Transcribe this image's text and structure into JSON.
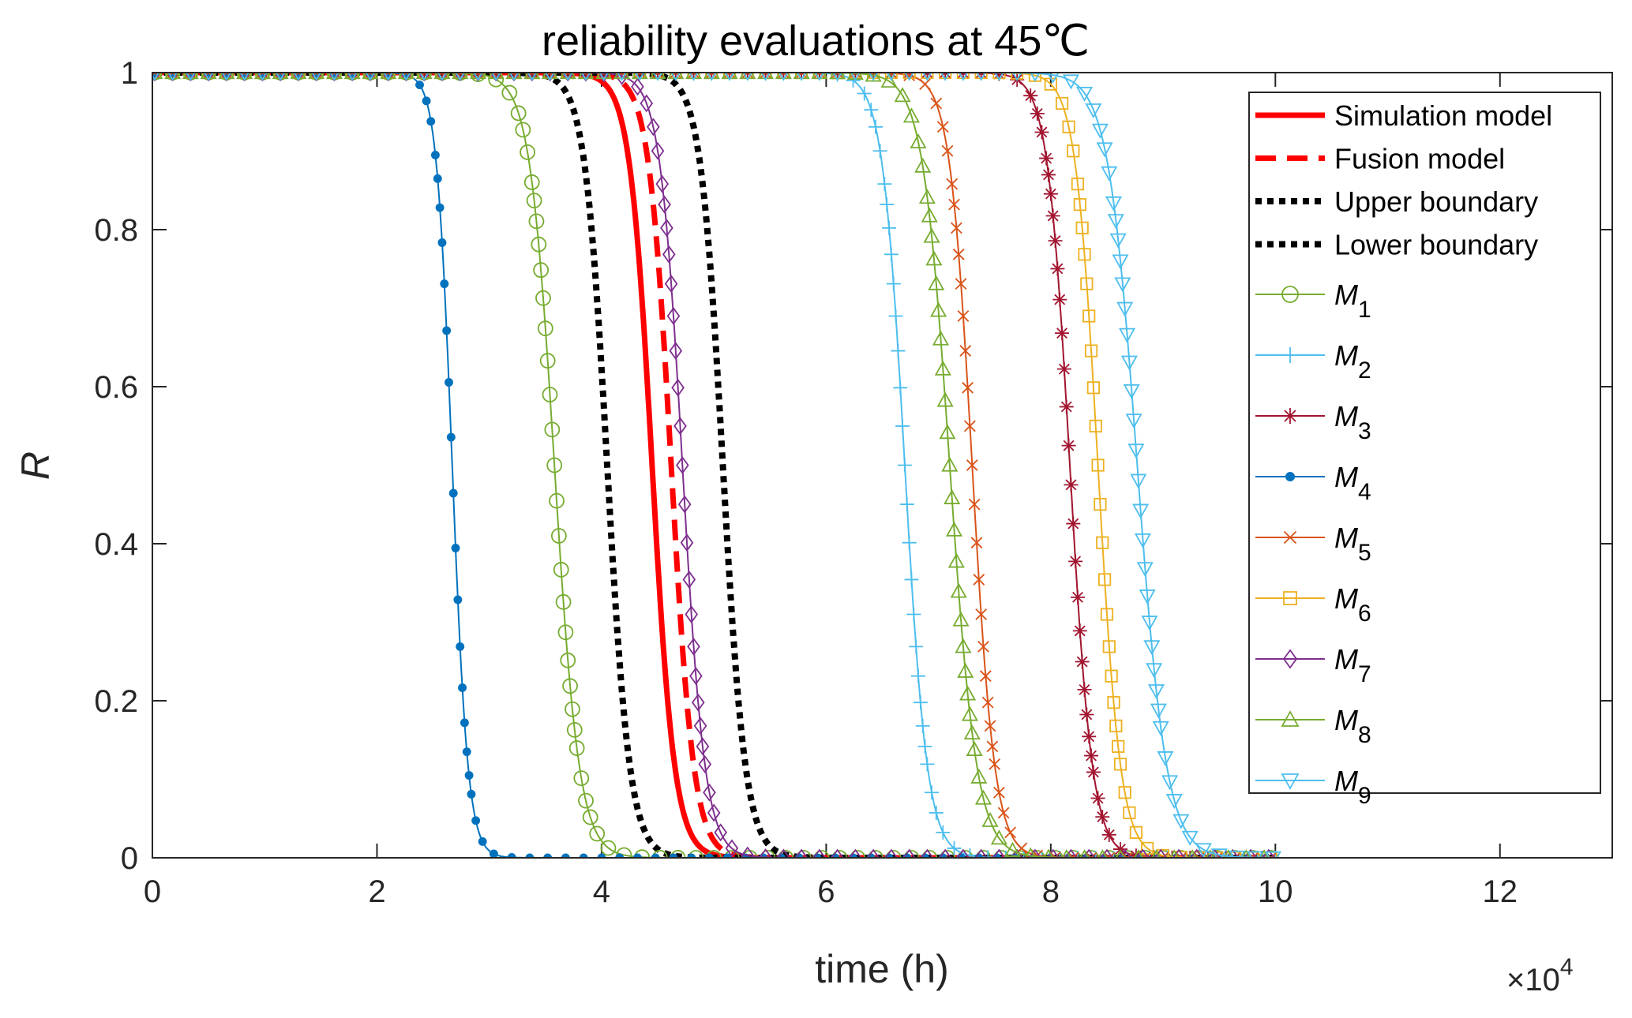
{
  "chart_data": {
    "type": "line",
    "title": "reliability evaluations at 45℃",
    "xlabel": "time (h)",
    "ylabel": "R",
    "x_multiplier_label": "×10",
    "x_multiplier_exp": "4",
    "xlim": [
      0,
      13
    ],
    "ylim": [
      0,
      1
    ],
    "xticks": [
      0,
      2,
      4,
      6,
      8,
      10,
      12
    ],
    "xtick_labels": [
      "0",
      "2",
      "4",
      "6",
      "8",
      "10",
      "12"
    ],
    "yticks": [
      0,
      0.2,
      0.4,
      0.6,
      0.8,
      1
    ],
    "ytick_labels": [
      "0",
      "0.2",
      "0.4",
      "0.6",
      "0.8",
      "1"
    ],
    "x_end": 10,
    "legend_position": "top-right",
    "series": [
      {
        "name": "Simulation model",
        "label": "Simulation model",
        "t50": 4.45,
        "scale": 0.1,
        "color": "#ff0000",
        "style": "solid",
        "marker": "none"
      },
      {
        "name": "Fusion model",
        "label": "Fusion model",
        "t50": 4.62,
        "scale": 0.1,
        "color": "#ff0000",
        "style": "dashed",
        "marker": "none"
      },
      {
        "name": "Upper boundary",
        "label": "Upper boundary",
        "t50": 5.08,
        "scale": 0.1,
        "color": "#000000",
        "style": "dotted",
        "marker": "none"
      },
      {
        "name": "Lower boundary",
        "label": "Lower boundary",
        "t50": 4.05,
        "scale": 0.1,
        "color": "#000000",
        "style": "dotted",
        "marker": "none"
      },
      {
        "name": "M1",
        "label": "M",
        "sub": "1",
        "t50": 3.58,
        "scale": 0.11,
        "color": "#77ac30",
        "style": "solid",
        "marker": "circle"
      },
      {
        "name": "M2",
        "label": "M",
        "sub": "2",
        "t50": 6.7,
        "scale": 0.1,
        "color": "#4dbeee",
        "style": "solid",
        "marker": "plus"
      },
      {
        "name": "M3",
        "label": "M",
        "sub": "3",
        "t50": 8.17,
        "scale": 0.1,
        "color": "#a2142f",
        "style": "solid",
        "marker": "star"
      },
      {
        "name": "M4",
        "label": "M",
        "sub": "4",
        "t50": 2.67,
        "scale": 0.07,
        "color": "#0072bd",
        "style": "solid",
        "marker": "dot"
      },
      {
        "name": "M5",
        "label": "M",
        "sub": "5",
        "t50": 7.3,
        "scale": 0.1,
        "color": "#d95319",
        "style": "solid",
        "marker": "x"
      },
      {
        "name": "M6",
        "label": "M",
        "sub": "6",
        "t50": 8.42,
        "scale": 0.1,
        "color": "#edb120",
        "style": "solid",
        "marker": "square"
      },
      {
        "name": "M7",
        "label": "M",
        "sub": "7",
        "t50": 4.72,
        "scale": 0.1,
        "color": "#7e2f8e",
        "style": "solid",
        "marker": "diamond"
      },
      {
        "name": "M8",
        "label": "M",
        "sub": "8",
        "t50": 7.1,
        "scale": 0.12,
        "color": "#77ac30",
        "style": "solid",
        "marker": "triangle"
      },
      {
        "name": "M9",
        "label": "M",
        "sub": "9",
        "t50": 8.77,
        "scale": 0.13,
        "color": "#4dbeee",
        "style": "solid",
        "marker": "triangle-down"
      }
    ]
  }
}
